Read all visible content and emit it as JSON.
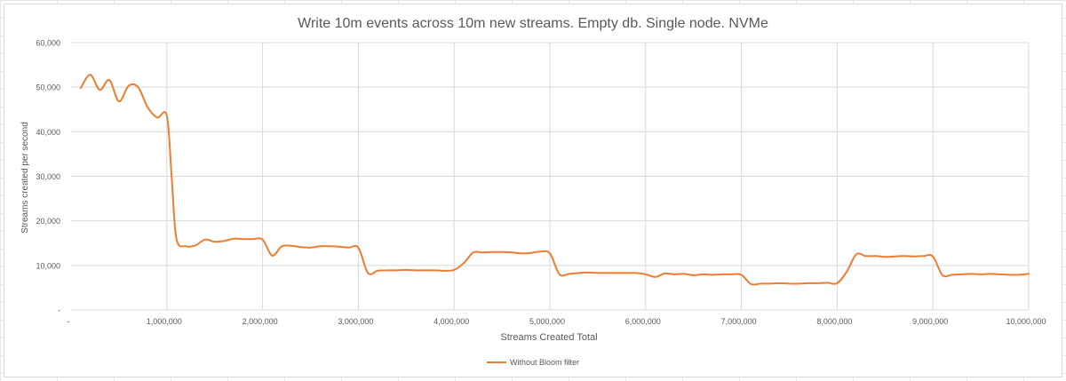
{
  "chart_data": {
    "type": "line",
    "title": "Write 10m events across 10m new streams. Empty db. Single node. NVMe",
    "xlabel": "Streams Created Total",
    "ylabel": "Streams created per second",
    "xlim": [
      0,
      10000000
    ],
    "ylim": [
      0,
      60000
    ],
    "x_ticks": [
      0,
      1000000,
      2000000,
      3000000,
      4000000,
      5000000,
      6000000,
      7000000,
      8000000,
      9000000,
      10000000
    ],
    "x_tick_labels": [
      "-",
      "1,000,000",
      "2,000,000",
      "3,000,000",
      "4,000,000",
      "5,000,000",
      "6,000,000",
      "7,000,000",
      "8,000,000",
      "9,000,000",
      "10,000,000"
    ],
    "y_ticks": [
      0,
      10000,
      20000,
      30000,
      40000,
      50000,
      60000
    ],
    "y_tick_labels": [
      "-",
      "10,000",
      "20,000",
      "30,000",
      "40,000",
      "50,000",
      "60,000"
    ],
    "grid": true,
    "legend_position": "bottom",
    "colors": {
      "series": "#ed7d31",
      "grid": "#d9d9d9",
      "text": "#595959"
    },
    "series": [
      {
        "name": "Without Bloom filter",
        "x": [
          100000,
          200000,
          300000,
          400000,
          500000,
          600000,
          700000,
          800000,
          900000,
          1000000,
          1050000,
          1100000,
          1200000,
          1300000,
          1400000,
          1500000,
          1600000,
          1700000,
          1800000,
          1900000,
          2000000,
          2100000,
          2200000,
          2300000,
          2400000,
          2500000,
          2600000,
          2700000,
          2800000,
          2900000,
          3000000,
          3100000,
          3200000,
          3300000,
          3400000,
          3500000,
          3600000,
          3700000,
          3800000,
          3900000,
          4000000,
          4100000,
          4200000,
          4300000,
          4400000,
          4500000,
          4600000,
          4700000,
          4800000,
          4900000,
          5000000,
          5100000,
          5200000,
          5300000,
          5400000,
          5500000,
          5600000,
          5700000,
          5800000,
          5900000,
          6000000,
          6100000,
          6200000,
          6300000,
          6400000,
          6500000,
          6600000,
          6700000,
          6800000,
          6900000,
          7000000,
          7100000,
          7200000,
          7300000,
          7400000,
          7500000,
          7600000,
          7700000,
          7800000,
          7900000,
          8000000,
          8100000,
          8200000,
          8300000,
          8400000,
          8500000,
          8600000,
          8700000,
          8800000,
          8900000,
          9000000,
          9100000,
          9200000,
          9300000,
          9400000,
          9500000,
          9600000,
          9700000,
          9800000,
          9900000,
          10000000
        ],
        "values": [
          49800,
          52800,
          49400,
          51600,
          46800,
          50300,
          50000,
          45500,
          43200,
          43600,
          30000,
          16000,
          14300,
          14500,
          15800,
          15300,
          15500,
          16000,
          15900,
          15900,
          15800,
          12200,
          14300,
          14400,
          14100,
          14000,
          14300,
          14300,
          14200,
          14000,
          14000,
          8300,
          8800,
          8900,
          8900,
          9000,
          8900,
          8900,
          8900,
          8800,
          9000,
          10500,
          12900,
          12900,
          13000,
          13000,
          12900,
          12700,
          12800,
          13100,
          12700,
          8000,
          8100,
          8300,
          8400,
          8300,
          8300,
          8300,
          8300,
          8300,
          8000,
          7400,
          8200,
          8000,
          8100,
          7800,
          8000,
          7900,
          8000,
          8000,
          7900,
          5800,
          5900,
          5900,
          6000,
          5900,
          5900,
          6000,
          6000,
          6100,
          6000,
          8600,
          12500,
          12100,
          12100,
          11900,
          12000,
          12100,
          12000,
          12100,
          12000,
          7800,
          7900,
          8000,
          8100,
          8000,
          8100,
          8000,
          7900,
          7900,
          8100
        ]
      }
    ]
  }
}
